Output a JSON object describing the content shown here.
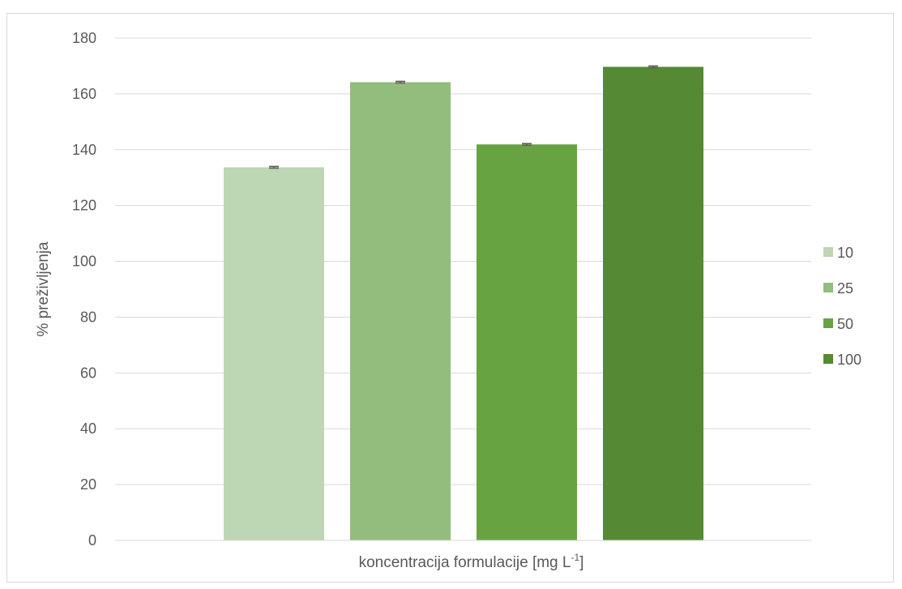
{
  "chart_data": {
    "type": "bar",
    "title": "",
    "xlabel": "koncentracija formulacije [mg L",
    "xlabel_superscript": "-1",
    "xlabel_suffix": "]",
    "ylabel": "% preživljenja",
    "ylim": [
      0,
      180
    ],
    "yticks": [
      0,
      20,
      40,
      60,
      80,
      100,
      120,
      140,
      160,
      180
    ],
    "grid": true,
    "legend_position": "right",
    "series": [
      {
        "name": "10",
        "value": 133.7,
        "error": 0.3,
        "color": "#bdd6b3"
      },
      {
        "name": "25",
        "value": 164.2,
        "error": 0.3,
        "color": "#93bd7d"
      },
      {
        "name": "50",
        "value": 141.9,
        "error": 0.3,
        "color": "#68a342"
      },
      {
        "name": "100",
        "value": 169.7,
        "error": 0.3,
        "color": "#558934"
      }
    ]
  }
}
